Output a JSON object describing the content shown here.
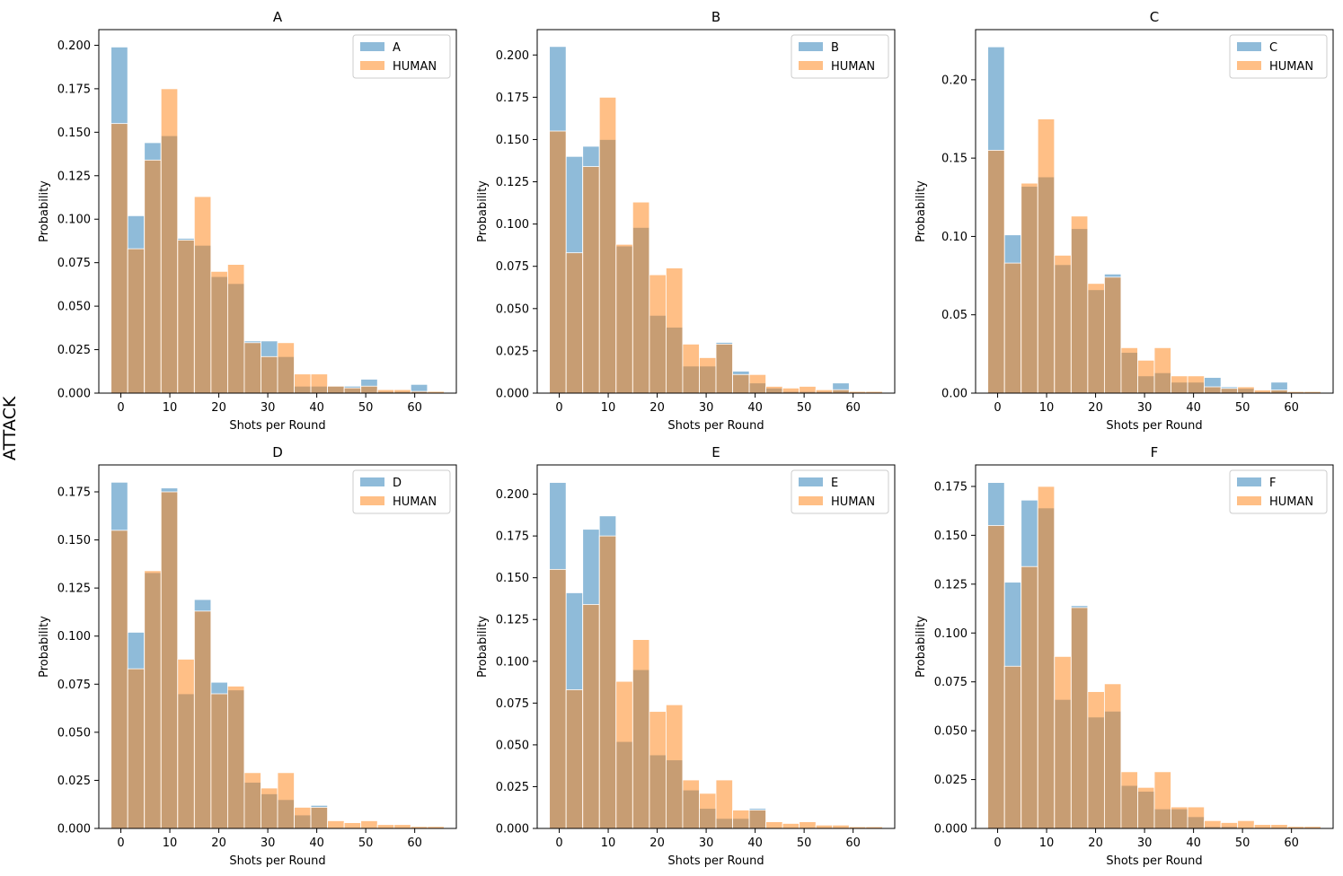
{
  "figure": {
    "row_label": "ATTACK",
    "xlabel": "Shots per Round",
    "ylabel": "Probability",
    "colors": {
      "model": "#1f77b4",
      "human": "#ff7f0e",
      "bar_alpha": 0.5
    }
  },
  "chart_data": [
    {
      "type": "bar",
      "title": "A",
      "bin_edges": [
        -2,
        1.4,
        4.8,
        8.2,
        11.6,
        15,
        18.4,
        21.8,
        25.2,
        28.6,
        32,
        35.4,
        38.8,
        42.2,
        45.6,
        49,
        52.4,
        55.8,
        59.2,
        62.6,
        66
      ],
      "series": [
        {
          "name": "A",
          "values": [
            0.199,
            0.102,
            0.144,
            0.148,
            0.089,
            0.085,
            0.067,
            0.063,
            0.03,
            0.03,
            0.021,
            0.004,
            0.004,
            0.004,
            0.004,
            0.008,
            0.001,
            0.001,
            0.005,
            0.0
          ]
        },
        {
          "name": "HUMAN",
          "values": [
            0.155,
            0.083,
            0.134,
            0.175,
            0.088,
            0.113,
            0.07,
            0.074,
            0.029,
            0.021,
            0.029,
            0.011,
            0.011,
            0.004,
            0.003,
            0.004,
            0.002,
            0.002,
            0.001,
            0.001
          ]
        }
      ],
      "xticks": [
        0,
        10,
        20,
        30,
        40,
        50,
        60
      ],
      "yticks": [
        "0.000",
        "0.025",
        "0.050",
        "0.075",
        "0.100",
        "0.125",
        "0.150",
        "0.175",
        "0.200"
      ],
      "xlim": [
        -4.5,
        68.5
      ],
      "ylim": [
        0,
        0.209
      ],
      "xlabel": "Shots per Round",
      "ylabel": "Probability",
      "legend": "top-right",
      "grid": false
    },
    {
      "type": "bar",
      "title": "B",
      "bin_edges": [
        -2,
        1.4,
        4.8,
        8.2,
        11.6,
        15,
        18.4,
        21.8,
        25.2,
        28.6,
        32,
        35.4,
        38.8,
        42.2,
        45.6,
        49,
        52.4,
        55.8,
        59.2,
        62.6,
        66
      ],
      "series": [
        {
          "name": "B",
          "values": [
            0.205,
            0.14,
            0.146,
            0.15,
            0.087,
            0.098,
            0.046,
            0.039,
            0.016,
            0.016,
            0.03,
            0.013,
            0.006,
            0.003,
            0.001,
            0.001,
            0.001,
            0.006,
            0.0,
            0.0
          ]
        },
        {
          "name": "HUMAN",
          "values": [
            0.155,
            0.083,
            0.134,
            0.175,
            0.088,
            0.113,
            0.07,
            0.074,
            0.029,
            0.021,
            0.029,
            0.011,
            0.011,
            0.004,
            0.003,
            0.004,
            0.002,
            0.002,
            0.001,
            0.001
          ]
        }
      ],
      "xticks": [
        0,
        10,
        20,
        30,
        40,
        50,
        60
      ],
      "yticks": [
        "0.000",
        "0.025",
        "0.050",
        "0.075",
        "0.100",
        "0.125",
        "0.150",
        "0.175",
        "0.200"
      ],
      "xlim": [
        -4.5,
        68.5
      ],
      "ylim": [
        0,
        0.215
      ],
      "xlabel": "Shots per Round",
      "ylabel": "Probability",
      "legend": "top-right",
      "grid": false
    },
    {
      "type": "bar",
      "title": "C",
      "bin_edges": [
        -2,
        1.4,
        4.8,
        8.2,
        11.6,
        15,
        18.4,
        21.8,
        25.2,
        28.6,
        32,
        35.4,
        38.8,
        42.2,
        45.6,
        49,
        52.4,
        55.8,
        59.2,
        62.6,
        66
      ],
      "series": [
        {
          "name": "C",
          "values": [
            0.221,
            0.101,
            0.132,
            0.138,
            0.082,
            0.105,
            0.066,
            0.076,
            0.026,
            0.011,
            0.013,
            0.007,
            0.007,
            0.01,
            0.004,
            0.003,
            0.001,
            0.007,
            0.0,
            0.0
          ]
        },
        {
          "name": "HUMAN",
          "values": [
            0.155,
            0.083,
            0.134,
            0.175,
            0.088,
            0.113,
            0.07,
            0.074,
            0.029,
            0.021,
            0.029,
            0.011,
            0.011,
            0.004,
            0.003,
            0.004,
            0.002,
            0.002,
            0.001,
            0.001
          ]
        }
      ],
      "xticks": [
        0,
        10,
        20,
        30,
        40,
        50,
        60
      ],
      "yticks": [
        "0.00",
        "0.05",
        "0.10",
        "0.15",
        "0.20"
      ],
      "xlim": [
        -4.5,
        68.5
      ],
      "ylim": [
        0,
        0.232
      ],
      "xlabel": "Shots per Round",
      "ylabel": "Probability",
      "legend": "top-right",
      "grid": false
    },
    {
      "type": "bar",
      "title": "D",
      "bin_edges": [
        -2,
        1.4,
        4.8,
        8.2,
        11.6,
        15,
        18.4,
        21.8,
        25.2,
        28.6,
        32,
        35.4,
        38.8,
        42.2,
        45.6,
        49,
        52.4,
        55.8,
        59.2,
        62.6,
        66
      ],
      "series": [
        {
          "name": "D",
          "values": [
            0.18,
            0.102,
            0.133,
            0.177,
            0.07,
            0.119,
            0.076,
            0.072,
            0.024,
            0.018,
            0.015,
            0.007,
            0.012,
            0.0,
            0.0,
            0.0,
            0.0,
            0.0,
            0.0,
            0.0
          ]
        },
        {
          "name": "HUMAN",
          "values": [
            0.155,
            0.083,
            0.134,
            0.175,
            0.088,
            0.113,
            0.07,
            0.074,
            0.029,
            0.021,
            0.029,
            0.011,
            0.011,
            0.004,
            0.003,
            0.004,
            0.002,
            0.002,
            0.001,
            0.001
          ]
        }
      ],
      "xticks": [
        0,
        10,
        20,
        30,
        40,
        50,
        60
      ],
      "yticks": [
        "0.000",
        "0.025",
        "0.050",
        "0.075",
        "0.100",
        "0.125",
        "0.150",
        "0.175"
      ],
      "xlim": [
        -4.5,
        68.5
      ],
      "ylim": [
        0,
        0.189
      ],
      "xlabel": "Shots per Round",
      "ylabel": "Probability",
      "legend": "top-right",
      "grid": false
    },
    {
      "type": "bar",
      "title": "E",
      "bin_edges": [
        -2,
        1.4,
        4.8,
        8.2,
        11.6,
        15,
        18.4,
        21.8,
        25.2,
        28.6,
        32,
        35.4,
        38.8,
        42.2,
        45.6,
        49,
        52.4,
        55.8,
        59.2,
        62.6,
        66
      ],
      "series": [
        {
          "name": "E",
          "values": [
            0.207,
            0.141,
            0.179,
            0.187,
            0.052,
            0.095,
            0.044,
            0.041,
            0.023,
            0.012,
            0.006,
            0.006,
            0.012,
            0.0,
            0.0,
            0.0,
            0.0,
            0.0,
            0.0,
            0.0
          ]
        },
        {
          "name": "HUMAN",
          "values": [
            0.155,
            0.083,
            0.134,
            0.175,
            0.088,
            0.113,
            0.07,
            0.074,
            0.029,
            0.021,
            0.029,
            0.011,
            0.011,
            0.004,
            0.003,
            0.004,
            0.002,
            0.002,
            0.001,
            0.001
          ]
        }
      ],
      "xticks": [
        0,
        10,
        20,
        30,
        40,
        50,
        60
      ],
      "yticks": [
        "0.000",
        "0.025",
        "0.050",
        "0.075",
        "0.100",
        "0.125",
        "0.150",
        "0.175",
        "0.200"
      ],
      "xlim": [
        -4.5,
        68.5
      ],
      "ylim": [
        0,
        0.2175
      ],
      "xlabel": "Shots per Round",
      "ylabel": "Probability",
      "legend": "top-right",
      "grid": false
    },
    {
      "type": "bar",
      "title": "F",
      "bin_edges": [
        -2,
        1.4,
        4.8,
        8.2,
        11.6,
        15,
        18.4,
        21.8,
        25.2,
        28.6,
        32,
        35.4,
        38.8,
        42.2,
        45.6,
        49,
        52.4,
        55.8,
        59.2,
        62.6,
        66
      ],
      "series": [
        {
          "name": "F",
          "values": [
            0.177,
            0.126,
            0.168,
            0.164,
            0.066,
            0.114,
            0.057,
            0.06,
            0.022,
            0.019,
            0.01,
            0.01,
            0.006,
            0.001,
            0.001,
            0.0,
            0.0,
            0.0,
            0.0,
            0.0
          ]
        },
        {
          "name": "HUMAN",
          "values": [
            0.155,
            0.083,
            0.134,
            0.175,
            0.088,
            0.113,
            0.07,
            0.074,
            0.029,
            0.021,
            0.029,
            0.011,
            0.011,
            0.004,
            0.003,
            0.004,
            0.002,
            0.002,
            0.001,
            0.001
          ]
        }
      ],
      "xticks": [
        0,
        10,
        20,
        30,
        40,
        50,
        60
      ],
      "yticks": [
        "0.000",
        "0.025",
        "0.050",
        "0.075",
        "0.100",
        "0.125",
        "0.150",
        "0.175"
      ],
      "xlim": [
        -4.5,
        68.5
      ],
      "ylim": [
        0,
        0.186
      ],
      "xlabel": "Shots per Round",
      "ylabel": "Probability",
      "legend": "top-right",
      "grid": false
    }
  ]
}
